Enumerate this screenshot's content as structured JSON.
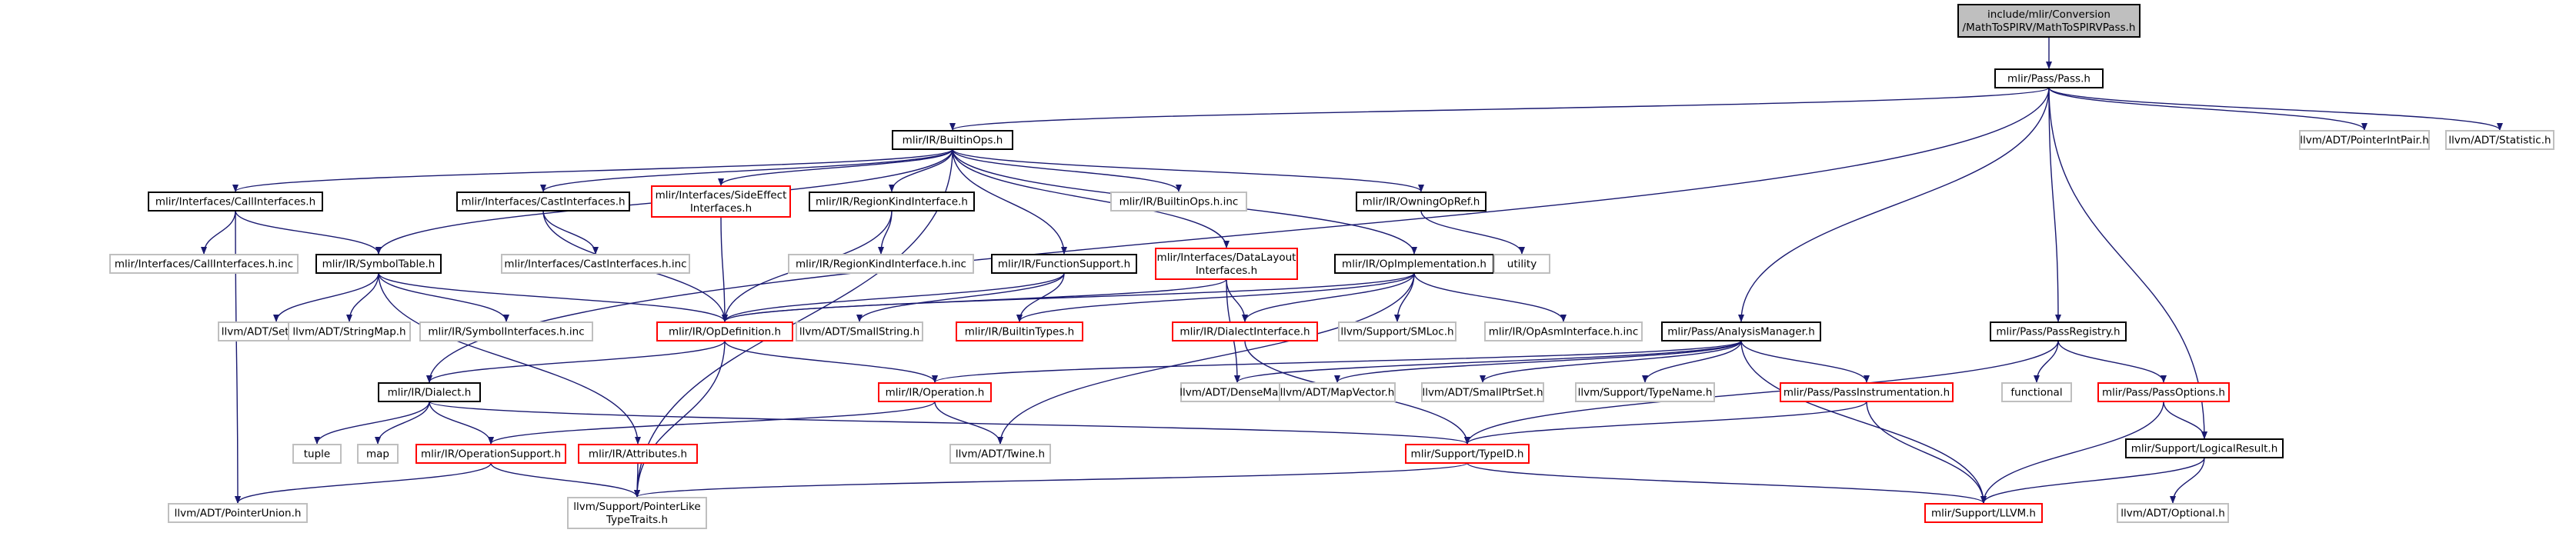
{
  "colors": {
    "root_fill": "#bfbfbf",
    "default_border": "#000000",
    "gray_border": "#bfbfbf",
    "red_border": "#ff0000",
    "edge": "#191970"
  },
  "nodes": [
    {
      "id": "root",
      "lines": [
        "include/mlir/Conversion",
        "/MathToSPIRV/MathToSPIRVPass.h"
      ],
      "style": "root"
    },
    {
      "id": "pass",
      "lines": [
        "mlir/Pass/Pass.h"
      ],
      "style": "default"
    },
    {
      "id": "builtinops",
      "lines": [
        "mlir/IR/BuiltinOps.h"
      ],
      "style": "default"
    },
    {
      "id": "pointerintpair",
      "lines": [
        "llvm/ADT/PointerIntPair.h"
      ],
      "style": "gray"
    },
    {
      "id": "statistic",
      "lines": [
        "llvm/ADT/Statistic.h"
      ],
      "style": "gray"
    },
    {
      "id": "callinterfaces",
      "lines": [
        "mlir/Interfaces/CallInterfaces.h"
      ],
      "style": "default"
    },
    {
      "id": "castinterfaces",
      "lines": [
        "mlir/Interfaces/CastInterfaces.h"
      ],
      "style": "default"
    },
    {
      "id": "sideeffect",
      "lines": [
        "mlir/Interfaces/SideEffect",
        "Interfaces.h"
      ],
      "style": "red"
    },
    {
      "id": "regionkind",
      "lines": [
        "mlir/IR/RegionKindInterface.h"
      ],
      "style": "default"
    },
    {
      "id": "builtinopsinc",
      "lines": [
        "mlir/IR/BuiltinOps.h.inc"
      ],
      "style": "gray"
    },
    {
      "id": "owningopref",
      "lines": [
        "mlir/IR/OwningOpRef.h"
      ],
      "style": "default"
    },
    {
      "id": "callinc",
      "lines": [
        "mlir/Interfaces/CallInterfaces.h.inc"
      ],
      "style": "gray"
    },
    {
      "id": "symboltable",
      "lines": [
        "mlir/IR/SymbolTable.h"
      ],
      "style": "default"
    },
    {
      "id": "castinc",
      "lines": [
        "mlir/Interfaces/CastInterfaces.h.inc"
      ],
      "style": "gray"
    },
    {
      "id": "regionkindinc",
      "lines": [
        "mlir/IR/RegionKindInterface.h.inc"
      ],
      "style": "gray"
    },
    {
      "id": "functionsupport",
      "lines": [
        "mlir/IR/FunctionSupport.h"
      ],
      "style": "default"
    },
    {
      "id": "datalayout",
      "lines": [
        "mlir/Interfaces/DataLayout",
        "Interfaces.h"
      ],
      "style": "red"
    },
    {
      "id": "opimpl",
      "lines": [
        "mlir/IR/OpImplementation.h"
      ],
      "style": "default"
    },
    {
      "id": "utility",
      "lines": [
        "utility"
      ],
      "style": "gray"
    },
    {
      "id": "setvector",
      "lines": [
        "llvm/ADT/SetVector.h"
      ],
      "style": "gray"
    },
    {
      "id": "stringmap",
      "lines": [
        "llvm/ADT/StringMap.h"
      ],
      "style": "gray"
    },
    {
      "id": "symbolinc",
      "lines": [
        "mlir/IR/SymbolInterfaces.h.inc"
      ],
      "style": "gray"
    },
    {
      "id": "opdefinition",
      "lines": [
        "mlir/IR/OpDefinition.h"
      ],
      "style": "red"
    },
    {
      "id": "smallstring",
      "lines": [
        "llvm/ADT/SmallString.h"
      ],
      "style": "gray"
    },
    {
      "id": "builtintypes",
      "lines": [
        "mlir/IR/BuiltinTypes.h"
      ],
      "style": "red"
    },
    {
      "id": "dialectinterface",
      "lines": [
        "mlir/IR/DialectInterface.h"
      ],
      "style": "red"
    },
    {
      "id": "smloc",
      "lines": [
        "llvm/Support/SMLoc.h"
      ],
      "style": "gray"
    },
    {
      "id": "opasminc",
      "lines": [
        "mlir/IR/OpAsmInterface.h.inc"
      ],
      "style": "gray"
    },
    {
      "id": "analysismanager",
      "lines": [
        "mlir/Pass/AnalysisManager.h"
      ],
      "style": "default"
    },
    {
      "id": "passregistry",
      "lines": [
        "mlir/Pass/PassRegistry.h"
      ],
      "style": "default"
    },
    {
      "id": "dialect",
      "lines": [
        "mlir/IR/Dialect.h"
      ],
      "style": "default"
    },
    {
      "id": "operation",
      "lines": [
        "mlir/IR/Operation.h"
      ],
      "style": "red"
    },
    {
      "id": "densemap",
      "lines": [
        "llvm/ADT/DenseMap.h"
      ],
      "style": "gray"
    },
    {
      "id": "mapvector",
      "lines": [
        "llvm/ADT/MapVector.h"
      ],
      "style": "gray"
    },
    {
      "id": "smallptrset",
      "lines": [
        "llvm/ADT/SmallPtrSet.h"
      ],
      "style": "gray"
    },
    {
      "id": "typename",
      "lines": [
        "llvm/Support/TypeName.h"
      ],
      "style": "gray"
    },
    {
      "id": "passinstrumentation",
      "lines": [
        "mlir/Pass/PassInstrumentation.h"
      ],
      "style": "red"
    },
    {
      "id": "functional",
      "lines": [
        "functional"
      ],
      "style": "gray"
    },
    {
      "id": "passoptions",
      "lines": [
        "mlir/Pass/PassOptions.h"
      ],
      "style": "red"
    },
    {
      "id": "tuple",
      "lines": [
        "tuple"
      ],
      "style": "gray"
    },
    {
      "id": "map",
      "lines": [
        "map"
      ],
      "style": "gray"
    },
    {
      "id": "operationsupport",
      "lines": [
        "mlir/IR/OperationSupport.h"
      ],
      "style": "red"
    },
    {
      "id": "attributes",
      "lines": [
        "mlir/IR/Attributes.h"
      ],
      "style": "red"
    },
    {
      "id": "twine",
      "lines": [
        "llvm/ADT/Twine.h"
      ],
      "style": "gray"
    },
    {
      "id": "typeid",
      "lines": [
        "mlir/Support/TypeID.h"
      ],
      "style": "red"
    },
    {
      "id": "logicalresult",
      "lines": [
        "mlir/Support/LogicalResult.h"
      ],
      "style": "default"
    },
    {
      "id": "pointerunion",
      "lines": [
        "llvm/ADT/PointerUnion.h"
      ],
      "style": "gray"
    },
    {
      "id": "pointerliketypetraits",
      "lines": [
        "llvm/Support/PointerLike",
        "TypeTraits.h"
      ],
      "style": "gray"
    },
    {
      "id": "llvmh",
      "lines": [
        "mlir/Support/LLVM.h"
      ],
      "style": "red"
    },
    {
      "id": "optional",
      "lines": [
        "llvm/ADT/Optional.h"
      ],
      "style": "gray"
    }
  ],
  "edges": [
    [
      "root",
      "pass"
    ],
    [
      "pass",
      "builtinops"
    ],
    [
      "pass",
      "pointerintpair"
    ],
    [
      "pass",
      "statistic"
    ],
    [
      "pass",
      "dialect"
    ],
    [
      "pass",
      "analysismanager"
    ],
    [
      "pass",
      "passregistry"
    ],
    [
      "pass",
      "logicalresult"
    ],
    [
      "builtinops",
      "callinterfaces"
    ],
    [
      "builtinops",
      "castinterfaces"
    ],
    [
      "builtinops",
      "sideeffect"
    ],
    [
      "builtinops",
      "regionkind"
    ],
    [
      "builtinops",
      "builtinopsinc"
    ],
    [
      "builtinops",
      "owningopref"
    ],
    [
      "builtinops",
      "symboltable"
    ],
    [
      "builtinops",
      "functionsupport"
    ],
    [
      "builtinops",
      "datalayout"
    ],
    [
      "builtinops",
      "opimpl"
    ],
    [
      "builtinops",
      "pointerliketypetraits"
    ],
    [
      "callinterfaces",
      "callinc"
    ],
    [
      "callinterfaces",
      "symboltable"
    ],
    [
      "callinterfaces",
      "pointerunion"
    ],
    [
      "castinterfaces",
      "castinc"
    ],
    [
      "castinterfaces",
      "opdefinition"
    ],
    [
      "sideeffect",
      "opdefinition"
    ],
    [
      "regionkind",
      "regionkindinc"
    ],
    [
      "regionkind",
      "opdefinition"
    ],
    [
      "owningopref",
      "utility"
    ],
    [
      "symboltable",
      "setvector"
    ],
    [
      "symboltable",
      "stringmap"
    ],
    [
      "symboltable",
      "symbolinc"
    ],
    [
      "symboltable",
      "opdefinition"
    ],
    [
      "symboltable",
      "attributes"
    ],
    [
      "functionsupport",
      "opdefinition"
    ],
    [
      "functionsupport",
      "smallstring"
    ],
    [
      "functionsupport",
      "builtintypes"
    ],
    [
      "datalayout",
      "opdefinition"
    ],
    [
      "datalayout",
      "densemap"
    ],
    [
      "datalayout",
      "dialectinterface"
    ],
    [
      "opimpl",
      "opdefinition"
    ],
    [
      "opimpl",
      "builtintypes"
    ],
    [
      "opimpl",
      "dialectinterface"
    ],
    [
      "opimpl",
      "smloc"
    ],
    [
      "opimpl",
      "opasminc"
    ],
    [
      "opimpl",
      "twine"
    ],
    [
      "opdefinition",
      "dialect"
    ],
    [
      "opdefinition",
      "operation"
    ],
    [
      "opdefinition",
      "pointerliketypetraits"
    ],
    [
      "dialectinterface",
      "typeid"
    ],
    [
      "analysismanager",
      "operation"
    ],
    [
      "analysismanager",
      "densemap"
    ],
    [
      "analysismanager",
      "mapvector"
    ],
    [
      "analysismanager",
      "smallptrset"
    ],
    [
      "analysismanager",
      "typename"
    ],
    [
      "analysismanager",
      "passinstrumentation"
    ],
    [
      "analysismanager",
      "llvmh"
    ],
    [
      "passregistry",
      "functional"
    ],
    [
      "passregistry",
      "passoptions"
    ],
    [
      "passregistry",
      "typeid"
    ],
    [
      "passinstrumentation",
      "typeid"
    ],
    [
      "passinstrumentation",
      "llvmh"
    ],
    [
      "passoptions",
      "llvmh"
    ],
    [
      "passoptions",
      "logicalresult"
    ],
    [
      "dialect",
      "tuple"
    ],
    [
      "dialect",
      "map"
    ],
    [
      "dialect",
      "operationsupport"
    ],
    [
      "dialect",
      "typeid"
    ],
    [
      "operation",
      "operationsupport"
    ],
    [
      "operation",
      "twine"
    ],
    [
      "operationsupport",
      "pointerunion"
    ],
    [
      "operationsupport",
      "pointerliketypetraits"
    ],
    [
      "attributes",
      "pointerliketypetraits"
    ],
    [
      "typeid",
      "llvmh"
    ],
    [
      "typeid",
      "pointerliketypetraits"
    ],
    [
      "logicalresult",
      "llvmh"
    ],
    [
      "logicalresult",
      "optional"
    ]
  ]
}
